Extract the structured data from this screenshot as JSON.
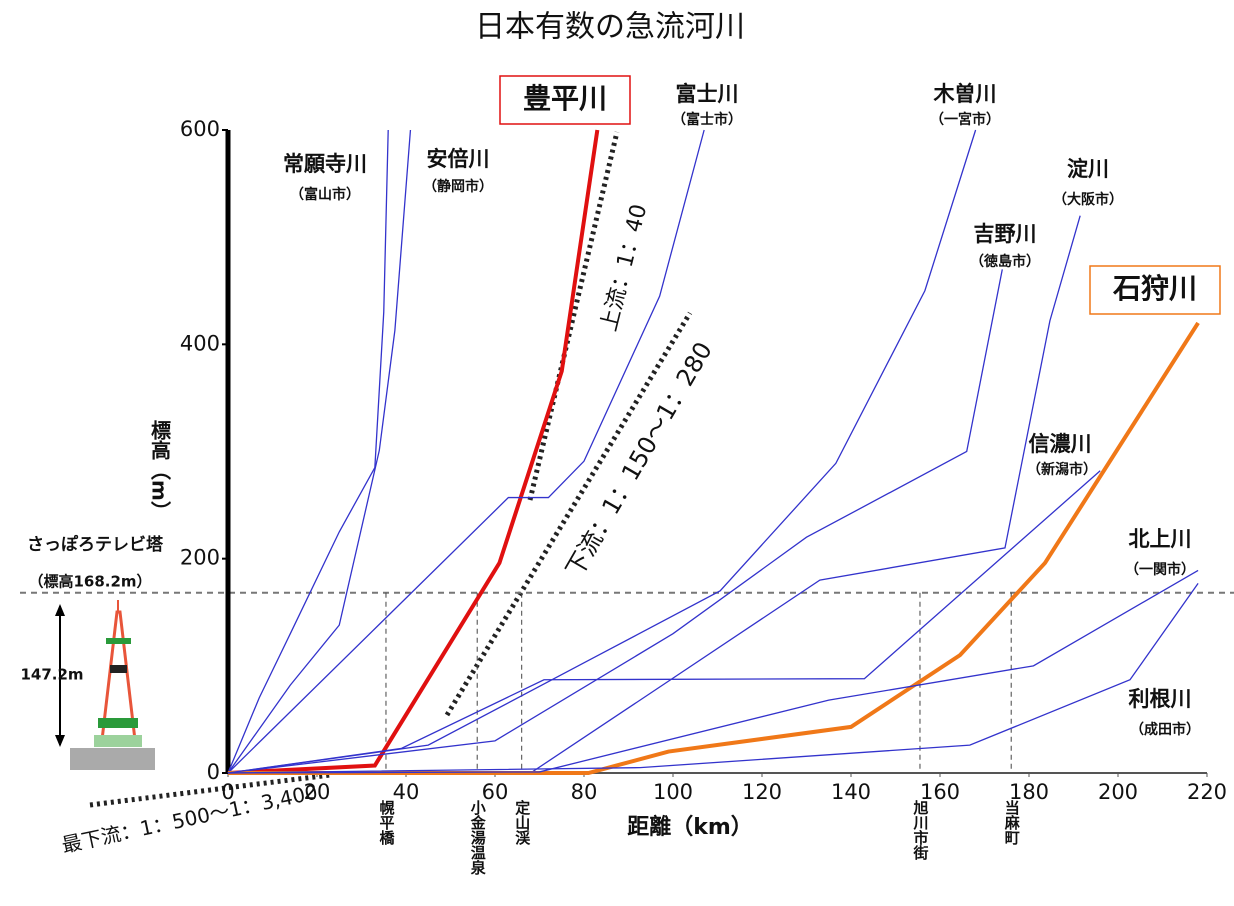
{
  "chart_data": {
    "type": "line",
    "title": "日本有数の急流河川",
    "xlabel": "距離（km）",
    "ylabel": "標高（m）",
    "xlim": [
      0,
      220
    ],
    "ylim": [
      0,
      600
    ],
    "xticks": [
      0,
      20,
      40,
      60,
      80,
      100,
      120,
      140,
      160,
      180,
      200,
      220
    ],
    "yticks": [
      0,
      200,
      400,
      600
    ],
    "series": [
      {
        "name": "常願寺川",
        "sublabel": "（富山市）",
        "color": "#3333cc",
        "x": [
          0,
          7,
          14,
          25,
          33,
          35,
          36
        ],
        "values": [
          0,
          70,
          130,
          225,
          285,
          430,
          600
        ]
      },
      {
        "name": "安倍川",
        "sublabel": "（静岡市）",
        "color": "#3333cc",
        "x": [
          0,
          14,
          25,
          34,
          37.5,
          41
        ],
        "values": [
          0,
          82,
          138,
          301,
          413,
          600
        ]
      },
      {
        "name": "豊平川",
        "color": "#e01010",
        "x": [
          0,
          33,
          61,
          75,
          83
        ],
        "values": [
          0,
          7,
          196,
          375,
          600
        ]
      },
      {
        "name": "富士川",
        "sublabel": "（富士市）",
        "color": "#3333cc",
        "x": [
          0,
          63,
          72,
          80,
          97,
          107
        ],
        "values": [
          0,
          257,
          257,
          291,
          445,
          600
        ]
      },
      {
        "name": "木曽川",
        "sublabel": "（一宮市）",
        "color": "#3333cc",
        "x": [
          0,
          45,
          81,
          110.6,
          136.6,
          156.6,
          168
        ],
        "values": [
          0,
          26,
          105,
          170,
          289,
          450,
          600
        ]
      },
      {
        "name": "淀川",
        "sublabel": "（大阪市）",
        "color": "#3333cc",
        "x": [
          0,
          68,
          92.6,
          133,
          174.6,
          184.7,
          191.5
        ],
        "values": [
          0,
          0,
          68,
          180,
          210,
          422,
          520
        ]
      },
      {
        "name": "吉野川",
        "sublabel": "（徳島市）",
        "color": "#3333cc",
        "x": [
          0,
          60,
          100,
          130,
          166,
          174
        ],
        "values": [
          0,
          30,
          130,
          220,
          300,
          470
        ]
      },
      {
        "name": "石狩川",
        "color": "#f07818",
        "x": [
          0,
          81,
          99,
          140,
          164.5,
          183.6,
          218
        ],
        "values": [
          0,
          0,
          20,
          43,
          110,
          196,
          420
        ]
      },
      {
        "name": "信濃川",
        "sublabel": "（新潟市）",
        "color": "#3333cc",
        "x": [
          0,
          39,
          71,
          143,
          196
        ],
        "values": [
          0,
          23,
          87,
          88,
          282
        ]
      },
      {
        "name": "北上川",
        "sublabel": "（一関市）",
        "color": "#3333cc",
        "x": [
          0,
          70,
          135,
          181,
          218
        ],
        "values": [
          0,
          1,
          68,
          100,
          189
        ]
      },
      {
        "name": "利根川",
        "sublabel": "（成田市）",
        "color": "#3333cc",
        "x": [
          0,
          92.6,
          166.7,
          202.7,
          218
        ],
        "values": [
          0,
          5,
          26,
          87,
          177
        ]
      }
    ],
    "reference_height": {
      "value": 168.2,
      "label": "さっぽろテレビ塔",
      "sublabel": "（標高168.2m）",
      "tower_height_label": "147.2m"
    },
    "reference_points": [
      {
        "x": 35.5,
        "label": "幌平橋"
      },
      {
        "x": 56,
        "label": "小金湯温泉"
      },
      {
        "x": 66,
        "label": "定山渓"
      },
      {
        "x": 155.5,
        "label": "旭川市街"
      },
      {
        "x": 176,
        "label": "当麻町"
      }
    ],
    "annotations": [
      "上流：1：40",
      "下流：1：150〜1：280",
      "最下流：1：500〜1：3,400"
    ]
  }
}
